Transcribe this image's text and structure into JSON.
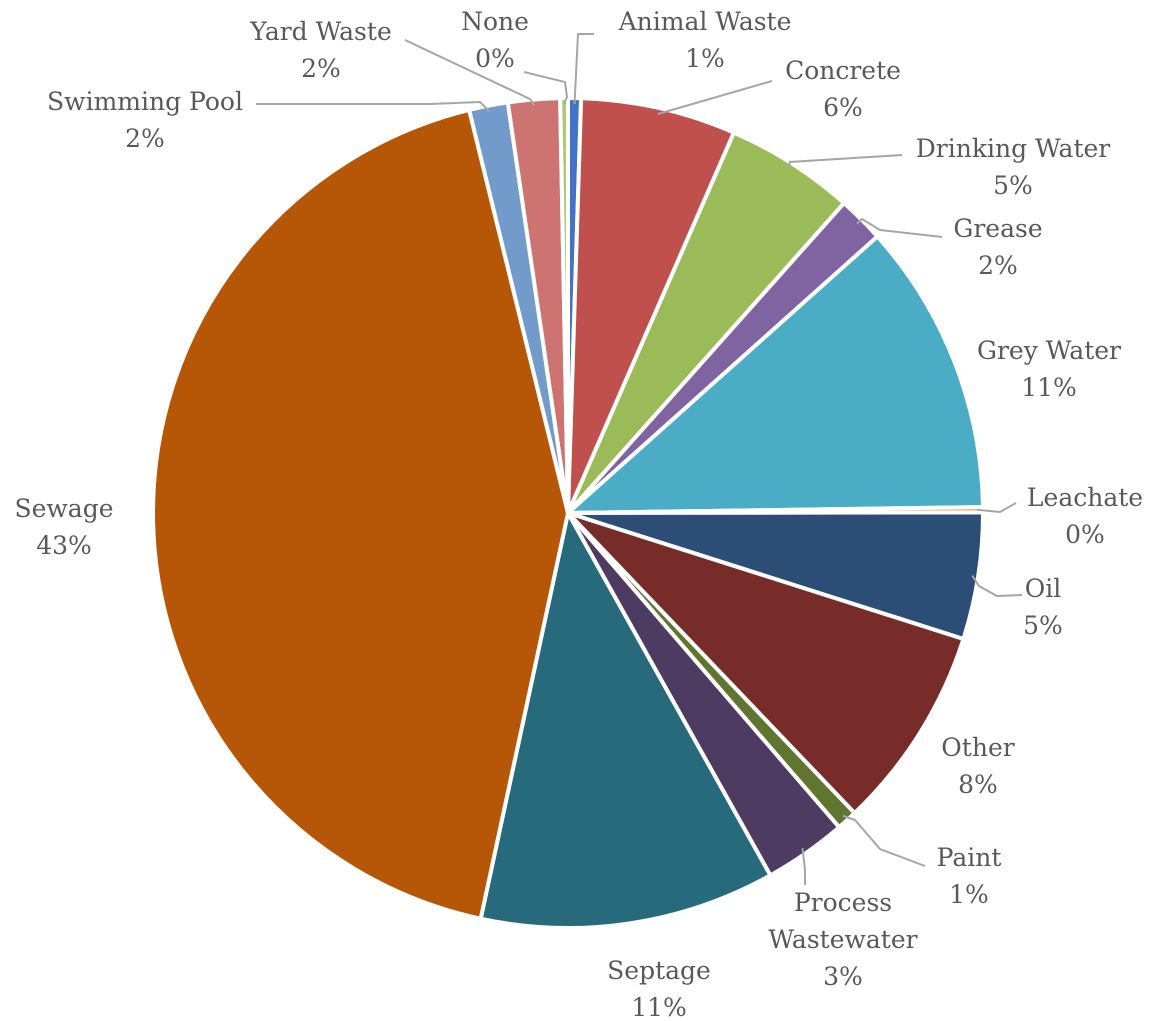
{
  "chart_data": {
    "type": "pie",
    "title": "",
    "start_angle_deg": 0,
    "direction": "clockwise",
    "legend": "none",
    "data_labels": "category name and percentage, outside end with leader lines",
    "slices": [
      {
        "label": "Animal Waste",
        "value": 0.5,
        "display": "1%",
        "color": "#4472C4"
      },
      {
        "label": "Concrete",
        "value": 6.0,
        "display": "6%",
        "color": "#C0504D"
      },
      {
        "label": "Drinking Water",
        "value": 5.0,
        "display": "5%",
        "color": "#9BBB59"
      },
      {
        "label": "Grease",
        "value": 1.8,
        "display": "2%",
        "color": "#8064A2"
      },
      {
        "label": "Grey Water",
        "value": 11.3,
        "display": "11%",
        "color": "#4BACC6"
      },
      {
        "label": "Leachate",
        "value": 0.2,
        "display": "0%",
        "color": "#F79646"
      },
      {
        "label": "Oil",
        "value": 4.9,
        "display": "5%",
        "color": "#2C4D75"
      },
      {
        "label": "Other",
        "value": 7.9,
        "display": "8%",
        "color": "#772C2A"
      },
      {
        "label": "Paint",
        "value": 0.8,
        "display": "1%",
        "color": "#5F7530"
      },
      {
        "label": "Process Wastewater",
        "value": 3.2,
        "display": "3%",
        "color": "#4D3B62"
      },
      {
        "label": "Septage",
        "value": 11.4,
        "display": "11%",
        "color": "#276A7C"
      },
      {
        "label": "Sewage",
        "value": 42.5,
        "display": "43%",
        "color": "#B65708"
      },
      {
        "label": "Swimming Pool",
        "value": 1.5,
        "display": "2%",
        "color": "#729ACA"
      },
      {
        "label": "Yard Waste",
        "value": 2.0,
        "display": "2%",
        "color": "#CD7371"
      },
      {
        "label": "None",
        "value": 0.3,
        "display": "0%",
        "color": "#AFC97A"
      }
    ]
  }
}
